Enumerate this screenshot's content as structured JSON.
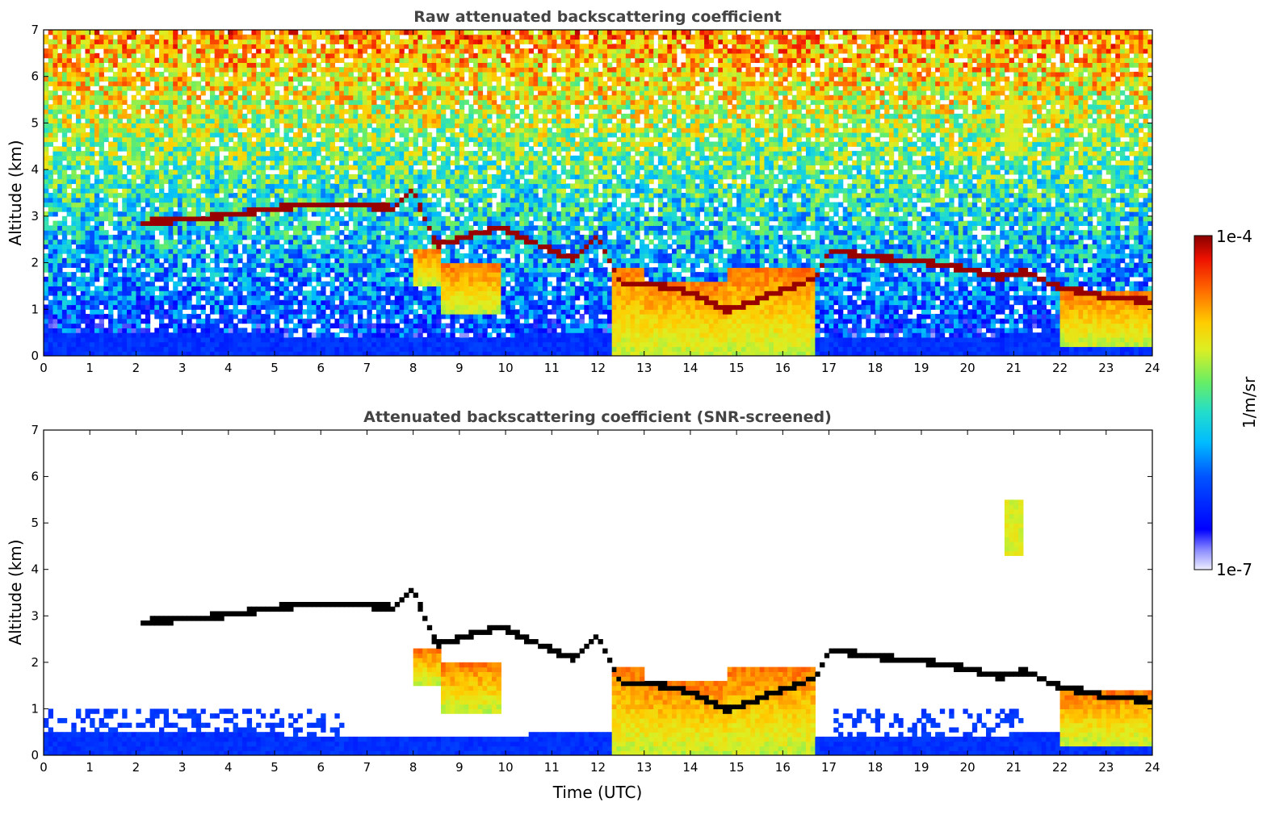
{
  "chart_data": [
    {
      "type": "heatmap",
      "title": "Raw attenuated backscattering coefficient",
      "xlabel": "",
      "ylabel": "Altitude (km)",
      "xlim": [
        0,
        24
      ],
      "ylim": [
        0,
        7
      ],
      "xticks": [
        0,
        1,
        2,
        3,
        4,
        5,
        6,
        7,
        8,
        9,
        10,
        11,
        12,
        13,
        14,
        15,
        16,
        17,
        18,
        19,
        20,
        21,
        22,
        23,
        24
      ],
      "yticks": [
        0,
        1,
        2,
        3,
        4,
        5,
        6,
        7
      ],
      "color_scale": "log",
      "clim": [
        1e-07,
        0.0001
      ],
      "screened": false,
      "layers": {
        "cloud_top_km": {
          "time": [
            2.1,
            3,
            4,
            5,
            6,
            7,
            7.6,
            8,
            8.5,
            9.9,
            10.5,
            11,
            11.5,
            12,
            12.5,
            13,
            14,
            14.8,
            16.7,
            17,
            18,
            19,
            20,
            20.7,
            21.2,
            22,
            23,
            24
          ],
          "km": [
            2.9,
            2.95,
            3.05,
            3.2,
            3.3,
            3.25,
            3.2,
            3.6,
            2.4,
            2.8,
            2.5,
            2.3,
            2.1,
            2.6,
            1.6,
            1.6,
            1.4,
            1.0,
            1.7,
            2.3,
            2.15,
            2.05,
            1.9,
            1.7,
            1.85,
            1.5,
            1.3,
            1.2
          ]
        },
        "precip_blocks": [
          {
            "t0": 8.0,
            "t1": 8.6,
            "top": 2.3,
            "bottom": 1.5
          },
          {
            "t0": 8.6,
            "t1": 9.9,
            "top": 2.0,
            "bottom": 0.9
          },
          {
            "t0": 12.3,
            "t1": 13.0,
            "top": 1.9,
            "bottom": 0.0
          },
          {
            "t0": 13.0,
            "t1": 14.8,
            "top": 1.6,
            "bottom": 0.0
          },
          {
            "t0": 14.8,
            "t1": 16.7,
            "top": 1.9,
            "bottom": 0.0
          },
          {
            "t0": 22.0,
            "t1": 24.0,
            "top": 1.4,
            "bottom": 0.2
          }
        ],
        "isolated_feature": {
          "time": 21.0,
          "bottom_km": 4.3,
          "top_km": 5.5
        }
      }
    },
    {
      "type": "heatmap",
      "title": "Attenuated backscattering coefficient (SNR-screened)",
      "xlabel": "Time (UTC)",
      "ylabel": "Altitude (km)",
      "xlim": [
        0,
        24
      ],
      "ylim": [
        0,
        7
      ],
      "xticks": [
        0,
        1,
        2,
        3,
        4,
        5,
        6,
        7,
        8,
        9,
        10,
        11,
        12,
        13,
        14,
        15,
        16,
        17,
        18,
        19,
        20,
        21,
        22,
        23,
        24
      ],
      "yticks": [
        0,
        1,
        2,
        3,
        4,
        5,
        6,
        7
      ],
      "color_scale": "log",
      "clim": [
        1e-07,
        0.0001
      ],
      "screened": true
    }
  ],
  "colorbar": {
    "max_label": "1e-4",
    "min_label": "1e-7",
    "unit_label": "1/m/sr",
    "colormap": "jet"
  }
}
